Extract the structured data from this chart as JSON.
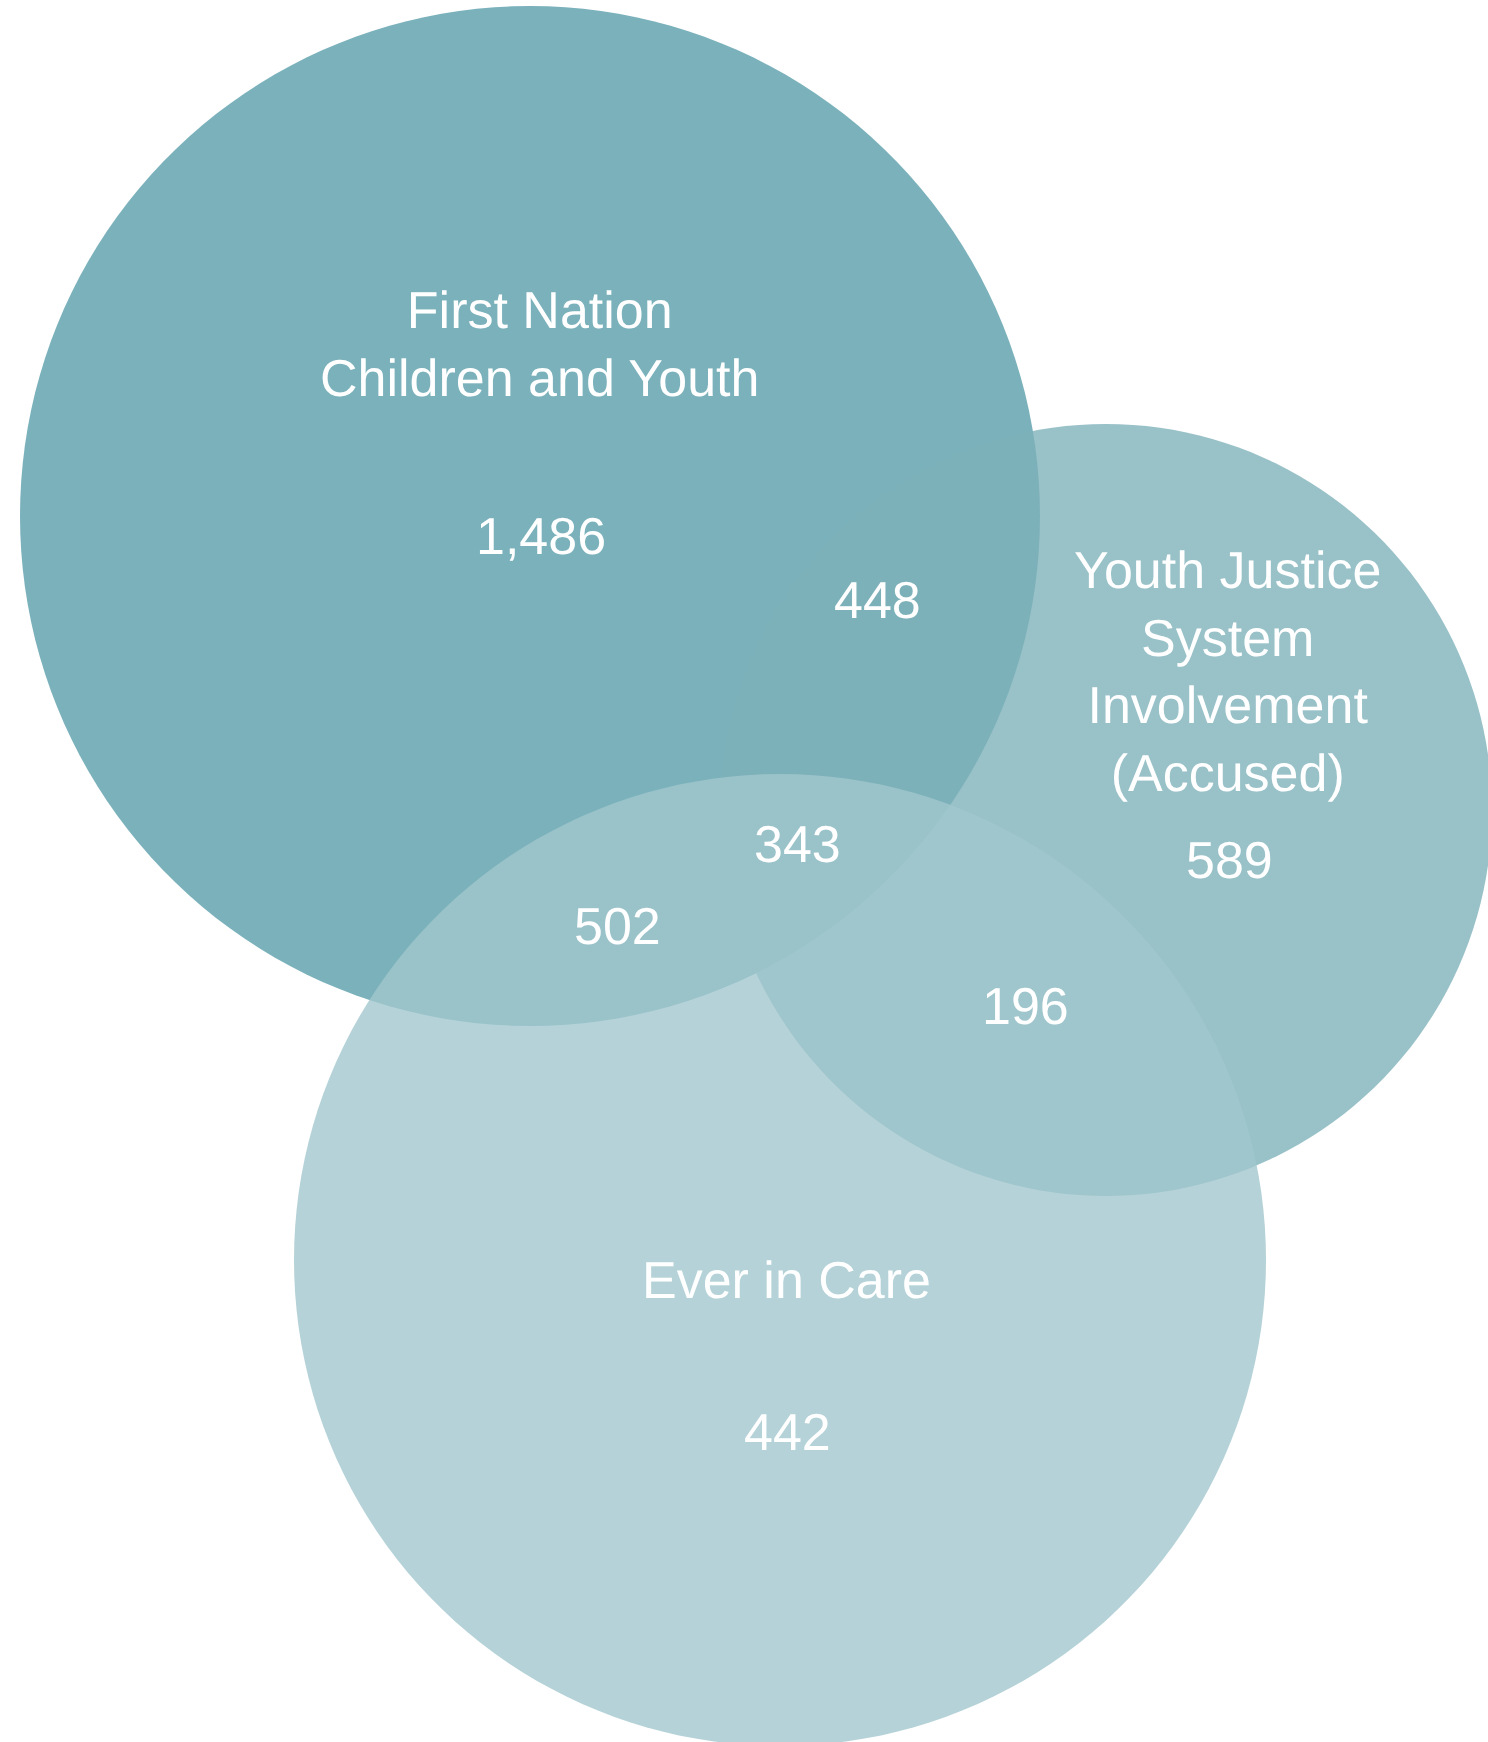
{
  "chart_data": {
    "type": "other",
    "categories": [
      "First Nation\nChildren and Youth",
      null,
      null,
      null,
      "Youth Justice\nSystem\nInvolvement\n(Accused)",
      null,
      "Ever in Care"
    ],
    "values": [
      1486,
      448,
      343,
      502,
      589,
      196,
      442
    ],
    "value_labels": [
      "1,486",
      "448",
      "343",
      "502",
      "589",
      "196",
      "442"
    ]
  }
}
